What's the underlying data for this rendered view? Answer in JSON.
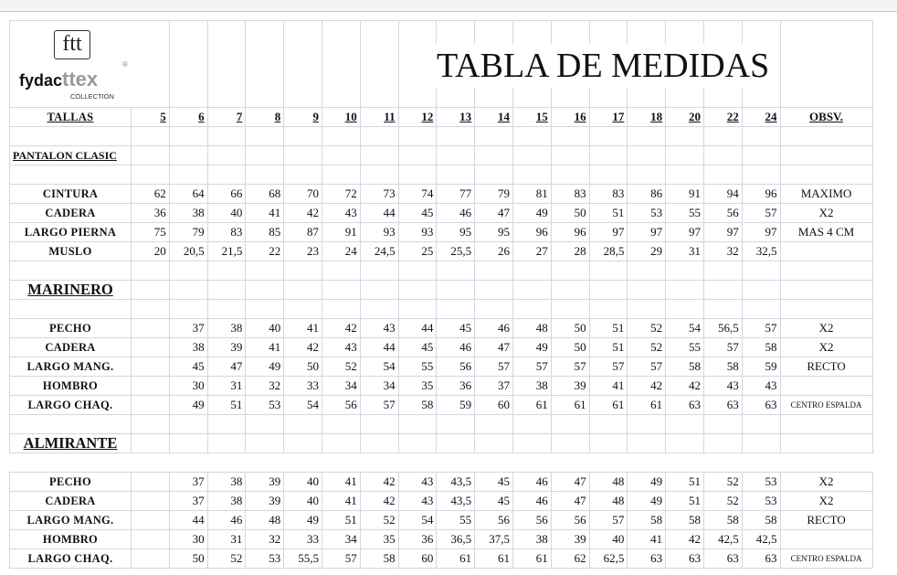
{
  "logo": {
    "mark": "ftt",
    "word_a": "fydac",
    "word_b": "ttex",
    "sub": "COLLECTION",
    "reg": "®"
  },
  "title": "TABLA DE MEDIDAS",
  "header": {
    "label": "TALLAS",
    "sizes": [
      "5",
      "6",
      "7",
      "8",
      "9",
      "10",
      "11",
      "12",
      "13",
      "14",
      "15",
      "16",
      "17",
      "18",
      "20",
      "22",
      "24"
    ],
    "obsv": "OBSV."
  },
  "sections": [
    {
      "name": "PANTALON CLASIC",
      "style": "small",
      "rows": [
        {
          "label": "CINTURA",
          "values": [
            "62",
            "64",
            "66",
            "68",
            "70",
            "72",
            "73",
            "74",
            "77",
            "79",
            "81",
            "83",
            "83",
            "86",
            "91",
            "94",
            "96"
          ],
          "obsv": "MAXIMO"
        },
        {
          "label": "CADERA",
          "values": [
            "36",
            "38",
            "40",
            "41",
            "42",
            "43",
            "44",
            "45",
            "46",
            "47",
            "49",
            "50",
            "51",
            "53",
            "55",
            "56",
            "57"
          ],
          "obsv": "X2"
        },
        {
          "label": "LARGO PIERNA",
          "values": [
            "75",
            "79",
            "83",
            "85",
            "87",
            "91",
            "93",
            "93",
            "95",
            "95",
            "96",
            "96",
            "97",
            "97",
            "97",
            "97",
            "97"
          ],
          "obsv": "MAS 4 CM"
        },
        {
          "label": "MUSLO",
          "values": [
            "20",
            "20,5",
            "21,5",
            "22",
            "23",
            "24",
            "24,5",
            "25",
            "25,5",
            "26",
            "27",
            "28",
            "28,5",
            "29",
            "31",
            "32",
            "32,5"
          ],
          "obsv": ""
        }
      ]
    },
    {
      "name": "MARINERO",
      "style": "big",
      "rows": [
        {
          "label": "PECHO",
          "values": [
            "",
            "37",
            "38",
            "40",
            "41",
            "42",
            "43",
            "44",
            "45",
            "46",
            "48",
            "50",
            "51",
            "52",
            "54",
            "56,5",
            "57"
          ],
          "obsv": "X2"
        },
        {
          "label": "CADERA",
          "values": [
            "",
            "38",
            "39",
            "41",
            "42",
            "43",
            "44",
            "45",
            "46",
            "47",
            "49",
            "50",
            "51",
            "52",
            "55",
            "57",
            "58"
          ],
          "obsv": "X2"
        },
        {
          "label": "LARGO MANG.",
          "values": [
            "",
            "45",
            "47",
            "49",
            "50",
            "52",
            "54",
            "55",
            "56",
            "57",
            "57",
            "57",
            "57",
            "57",
            "58",
            "58",
            "59"
          ],
          "obsv": "RECTO"
        },
        {
          "label": "HOMBRO",
          "values": [
            "",
            "30",
            "31",
            "32",
            "33",
            "34",
            "34",
            "35",
            "36",
            "37",
            "38",
            "39",
            "41",
            "42",
            "42",
            "43",
            "43"
          ],
          "obsv": ""
        },
        {
          "label": "LARGO CHAQ.",
          "values": [
            "",
            "49",
            "51",
            "53",
            "54",
            "56",
            "57",
            "58",
            "59",
            "60",
            "61",
            "61",
            "61",
            "61",
            "63",
            "63",
            "63"
          ],
          "obsv": "CENTRO ESPALDA"
        }
      ]
    },
    {
      "name": "ALMIRANTE",
      "style": "big",
      "rows": [
        {
          "label": "PECHO",
          "values": [
            "",
            "37",
            "38",
            "39",
            "40",
            "41",
            "42",
            "43",
            "43,5",
            "45",
            "46",
            "47",
            "48",
            "49",
            "51",
            "52",
            "53"
          ],
          "obsv": "X2"
        },
        {
          "label": "CADERA",
          "values": [
            "",
            "37",
            "38",
            "39",
            "40",
            "41",
            "42",
            "43",
            "43,5",
            "45",
            "46",
            "47",
            "48",
            "49",
            "51",
            "52",
            "53"
          ],
          "obsv": "X2"
        },
        {
          "label": "LARGO MANG.",
          "values": [
            "",
            "44",
            "46",
            "48",
            "49",
            "51",
            "52",
            "54",
            "55",
            "56",
            "56",
            "56",
            "57",
            "58",
            "58",
            "58",
            "58"
          ],
          "obsv": "RECTO"
        },
        {
          "label": "HOMBRO",
          "values": [
            "",
            "30",
            "31",
            "32",
            "33",
            "34",
            "35",
            "36",
            "36,5",
            "37,5",
            "38",
            "39",
            "40",
            "41",
            "42",
            "42,5",
            "42,5"
          ],
          "obsv": ""
        },
        {
          "label": "LARGO CHAQ.",
          "values": [
            "",
            "50",
            "52",
            "53",
            "55,5",
            "57",
            "58",
            "60",
            "61",
            "61",
            "61",
            "62",
            "62,5",
            "63",
            "63",
            "63",
            "63"
          ],
          "obsv": "CENTRO ESPALDA"
        }
      ]
    }
  ]
}
